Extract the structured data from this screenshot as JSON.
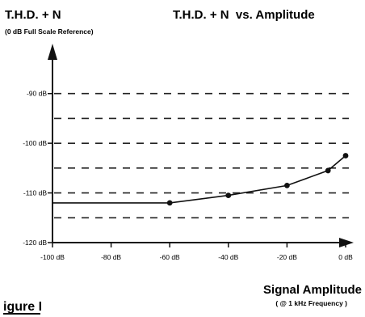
{
  "chart_data": {
    "type": "line",
    "title": "T.H.D. + N  vs. Amplitude",
    "ylabel": "T.H.D. + N",
    "ylabel_sub": "(0 dB Full Scale Reference)",
    "xlabel": "Signal Amplitude",
    "xlabel_sub": "( @ 1 kHz Frequency )",
    "figure_label": "igure I",
    "xlim": [
      -100,
      0
    ],
    "ylim": [
      -120,
      -85
    ],
    "x_ticks": [
      -100,
      -80,
      -60,
      -40,
      -20,
      0
    ],
    "x_tick_labels": [
      "-100 dB",
      "-80 dB",
      "-60 dB",
      "-40 dB",
      "-20 dB",
      "0 dB"
    ],
    "y_ticks": [
      -90,
      -100,
      -110,
      -120
    ],
    "y_tick_labels": [
      "-90 dB",
      "-100 dB",
      "-110 dB",
      "-120 dB"
    ],
    "dashed_gridlines_y": [
      -90,
      -95,
      -100,
      -105,
      -110,
      -115
    ],
    "series": [
      {
        "x": [
          -100,
          -60,
          -40,
          -20,
          -6,
          0
        ],
        "y": [
          -112,
          -112,
          -110.5,
          -108.5,
          -105.5,
          -102.5
        ],
        "markers_at": [
          -60,
          -40,
          -20,
          -6,
          0
        ]
      }
    ]
  }
}
